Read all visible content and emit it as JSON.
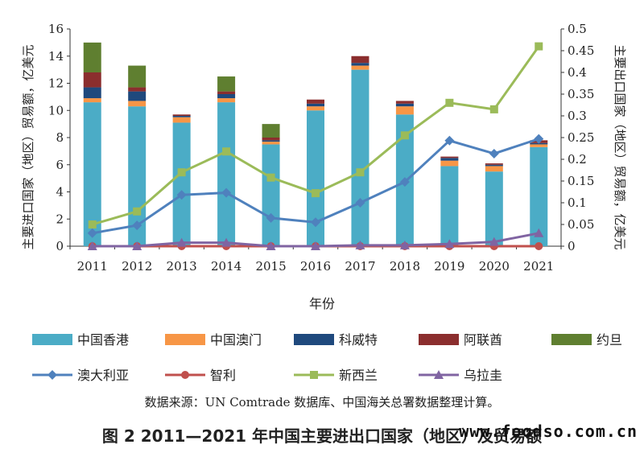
{
  "chart_data": {
    "type": "bar+line",
    "categories": [
      "2011",
      "2012",
      "2013",
      "2014",
      "2015",
      "2016",
      "2017",
      "2018",
      "2019",
      "2020",
      "2021"
    ],
    "xlabel": "年份",
    "ylabel_left": "主要进口国家（地区）贸易额，亿美元",
    "ylabel_right": "主要出口国家（地区）贸易额，亿美元",
    "ylim_left": [
      0,
      16
    ],
    "yticks_left": [
      "0",
      "2",
      "4",
      "6",
      "8",
      "10",
      "12",
      "14",
      "16"
    ],
    "ylim_right": [
      0,
      0.5
    ],
    "yticks_right": [
      "0",
      "0.05",
      "0.1",
      "0.15",
      "0.2",
      "0.25",
      "0.3",
      "0.35",
      "0.4",
      "0.45",
      "0.5"
    ],
    "bar_series": [
      {
        "name": "中国香港",
        "color": "#4bacc6",
        "values": [
          10.6,
          10.3,
          9.1,
          10.6,
          7.5,
          10.0,
          13.0,
          9.7,
          5.9,
          5.5,
          7.3
        ]
      },
      {
        "name": "中国澳门",
        "color": "#f79646",
        "values": [
          0.3,
          0.4,
          0.4,
          0.3,
          0.2,
          0.3,
          0.3,
          0.6,
          0.4,
          0.4,
          0.2
        ]
      },
      {
        "name": "科威特",
        "color": "#1f497d",
        "values": [
          0.8,
          0.7,
          0.1,
          0.3,
          0.1,
          0.2,
          0.2,
          0.2,
          0.2,
          0.1,
          0.1
        ]
      },
      {
        "name": "阿联酋",
        "color": "#8b2e2e",
        "values": [
          1.1,
          0.3,
          0.1,
          0.2,
          0.2,
          0.3,
          0.5,
          0.2,
          0.1,
          0.1,
          0.2
        ]
      },
      {
        "name": "约旦",
        "color": "#5f7f30",
        "values": [
          2.2,
          1.6,
          0.0,
          1.1,
          1.0,
          0.0,
          0.0,
          0.0,
          0.0,
          0.0,
          0.0
        ]
      }
    ],
    "line_series": [
      {
        "name": "澳大利亚",
        "color": "#4f81bd",
        "marker": "diamond",
        "values": [
          0.03,
          0.048,
          0.118,
          0.123,
          0.065,
          0.055,
          0.1,
          0.148,
          0.243,
          0.213,
          0.247
        ]
      },
      {
        "name": "智利",
        "color": "#c0504d",
        "marker": "circle",
        "values": [
          0.0,
          0.0,
          0.0,
          0.0,
          0.0,
          0.0,
          0.0,
          0.0,
          0.0,
          0.0,
          0.0
        ]
      },
      {
        "name": "新西兰",
        "color": "#9bbb59",
        "marker": "square",
        "values": [
          0.05,
          0.08,
          0.17,
          0.218,
          0.158,
          0.122,
          0.17,
          0.255,
          0.33,
          0.315,
          0.46
        ]
      },
      {
        "name": "乌拉圭",
        "color": "#8064a2",
        "marker": "triangle",
        "values": [
          0.0,
          0.0,
          0.008,
          0.008,
          0.0,
          0.0,
          0.002,
          0.002,
          0.005,
          0.01,
          0.03
        ]
      }
    ]
  },
  "source_note": "数据来源：UN Comtrade 数据库、中国海关总署数据整理计算。",
  "caption": "图 2  2011—2021 年中国主要进出口国家（地区）及贸易额",
  "watermark": "www.foodso.com.cn"
}
